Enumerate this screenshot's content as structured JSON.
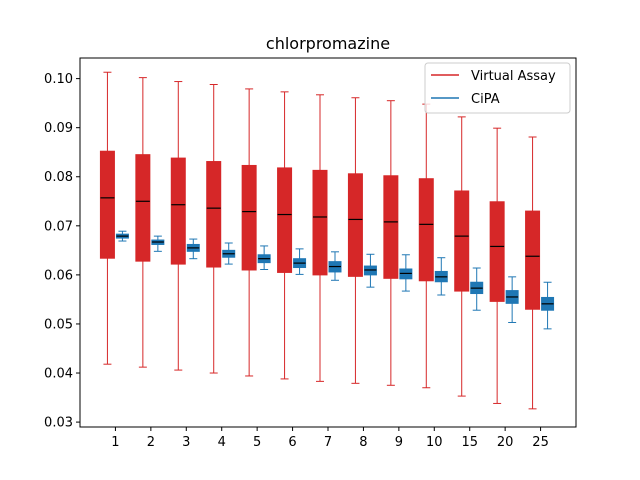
{
  "chart_data": {
    "type": "box",
    "title": "chlorpromazine",
    "xlabel": "",
    "ylabel": "",
    "categories": [
      "1",
      "2",
      "3",
      "4",
      "5",
      "6",
      "7",
      "8",
      "9",
      "10",
      "15",
      "20",
      "25"
    ],
    "ylim": [
      0.029,
      0.1042
    ],
    "yticks": [
      0.03,
      0.04,
      0.05,
      0.06,
      0.07,
      0.08,
      0.09,
      0.1
    ],
    "ytick_labels": [
      "0.03",
      "0.04",
      "0.05",
      "0.06",
      "0.07",
      "0.08",
      "0.09",
      "0.10"
    ],
    "grid": false,
    "legend_position": "top-right",
    "series": [
      {
        "name": "Virtual Assay",
        "color": "#d62728",
        "boxes": [
          {
            "whislo": 0.0418,
            "q1": 0.0634,
            "med": 0.0757,
            "q3": 0.0852,
            "whishi": 0.1013
          },
          {
            "whislo": 0.0412,
            "q1": 0.0628,
            "med": 0.075,
            "q3": 0.0845,
            "whishi": 0.1002
          },
          {
            "whislo": 0.0406,
            "q1": 0.0622,
            "med": 0.0743,
            "q3": 0.0838,
            "whishi": 0.0994
          },
          {
            "whislo": 0.04,
            "q1": 0.0616,
            "med": 0.0736,
            "q3": 0.0831,
            "whishi": 0.0988
          },
          {
            "whislo": 0.0394,
            "q1": 0.061,
            "med": 0.0729,
            "q3": 0.0823,
            "whishi": 0.0979
          },
          {
            "whislo": 0.0388,
            "q1": 0.0605,
            "med": 0.0723,
            "q3": 0.0818,
            "whishi": 0.0973
          },
          {
            "whislo": 0.0383,
            "q1": 0.06,
            "med": 0.0718,
            "q3": 0.0813,
            "whishi": 0.0967
          },
          {
            "whislo": 0.0379,
            "q1": 0.0597,
            "med": 0.0713,
            "q3": 0.0806,
            "whishi": 0.0961
          },
          {
            "whislo": 0.0375,
            "q1": 0.0593,
            "med": 0.0708,
            "q3": 0.0802,
            "whishi": 0.0955
          },
          {
            "whislo": 0.037,
            "q1": 0.0588,
            "med": 0.0703,
            "q3": 0.0796,
            "whishi": 0.0948
          },
          {
            "whislo": 0.0353,
            "q1": 0.0567,
            "med": 0.0679,
            "q3": 0.0771,
            "whishi": 0.0922
          },
          {
            "whislo": 0.0338,
            "q1": 0.0546,
            "med": 0.0658,
            "q3": 0.0749,
            "whishi": 0.0899
          },
          {
            "whislo": 0.0327,
            "q1": 0.053,
            "med": 0.0638,
            "q3": 0.073,
            "whishi": 0.0881
          }
        ]
      },
      {
        "name": "CiPA",
        "color": "#1f77b4",
        "boxes": [
          {
            "whislo": 0.0669,
            "q1": 0.0675,
            "med": 0.0679,
            "q3": 0.0683,
            "whishi": 0.0689
          },
          {
            "whislo": 0.0648,
            "q1": 0.0662,
            "med": 0.0667,
            "q3": 0.0671,
            "whishi": 0.0679
          },
          {
            "whislo": 0.0633,
            "q1": 0.0648,
            "med": 0.0655,
            "q3": 0.0662,
            "whishi": 0.0673
          },
          {
            "whislo": 0.0622,
            "q1": 0.0636,
            "med": 0.0643,
            "q3": 0.065,
            "whishi": 0.0665
          },
          {
            "whislo": 0.0611,
            "q1": 0.0625,
            "med": 0.0633,
            "q3": 0.0641,
            "whishi": 0.0659
          },
          {
            "whislo": 0.0601,
            "q1": 0.0615,
            "med": 0.0624,
            "q3": 0.0633,
            "whishi": 0.0653
          },
          {
            "whislo": 0.0589,
            "q1": 0.0606,
            "med": 0.0617,
            "q3": 0.0627,
            "whishi": 0.0647
          },
          {
            "whislo": 0.0575,
            "q1": 0.06,
            "med": 0.061,
            "q3": 0.0618,
            "whishi": 0.0642
          },
          {
            "whislo": 0.0567,
            "q1": 0.0592,
            "med": 0.0603,
            "q3": 0.0612,
            "whishi": 0.0641
          },
          {
            "whislo": 0.0559,
            "q1": 0.0586,
            "med": 0.0596,
            "q3": 0.0607,
            "whishi": 0.0635
          },
          {
            "whislo": 0.0528,
            "q1": 0.0562,
            "med": 0.0573,
            "q3": 0.0585,
            "whishi": 0.0614
          },
          {
            "whislo": 0.0503,
            "q1": 0.0542,
            "med": 0.0555,
            "q3": 0.0568,
            "whishi": 0.0596
          },
          {
            "whislo": 0.049,
            "q1": 0.0528,
            "med": 0.0541,
            "q3": 0.0554,
            "whishi": 0.0585
          }
        ]
      }
    ]
  }
}
